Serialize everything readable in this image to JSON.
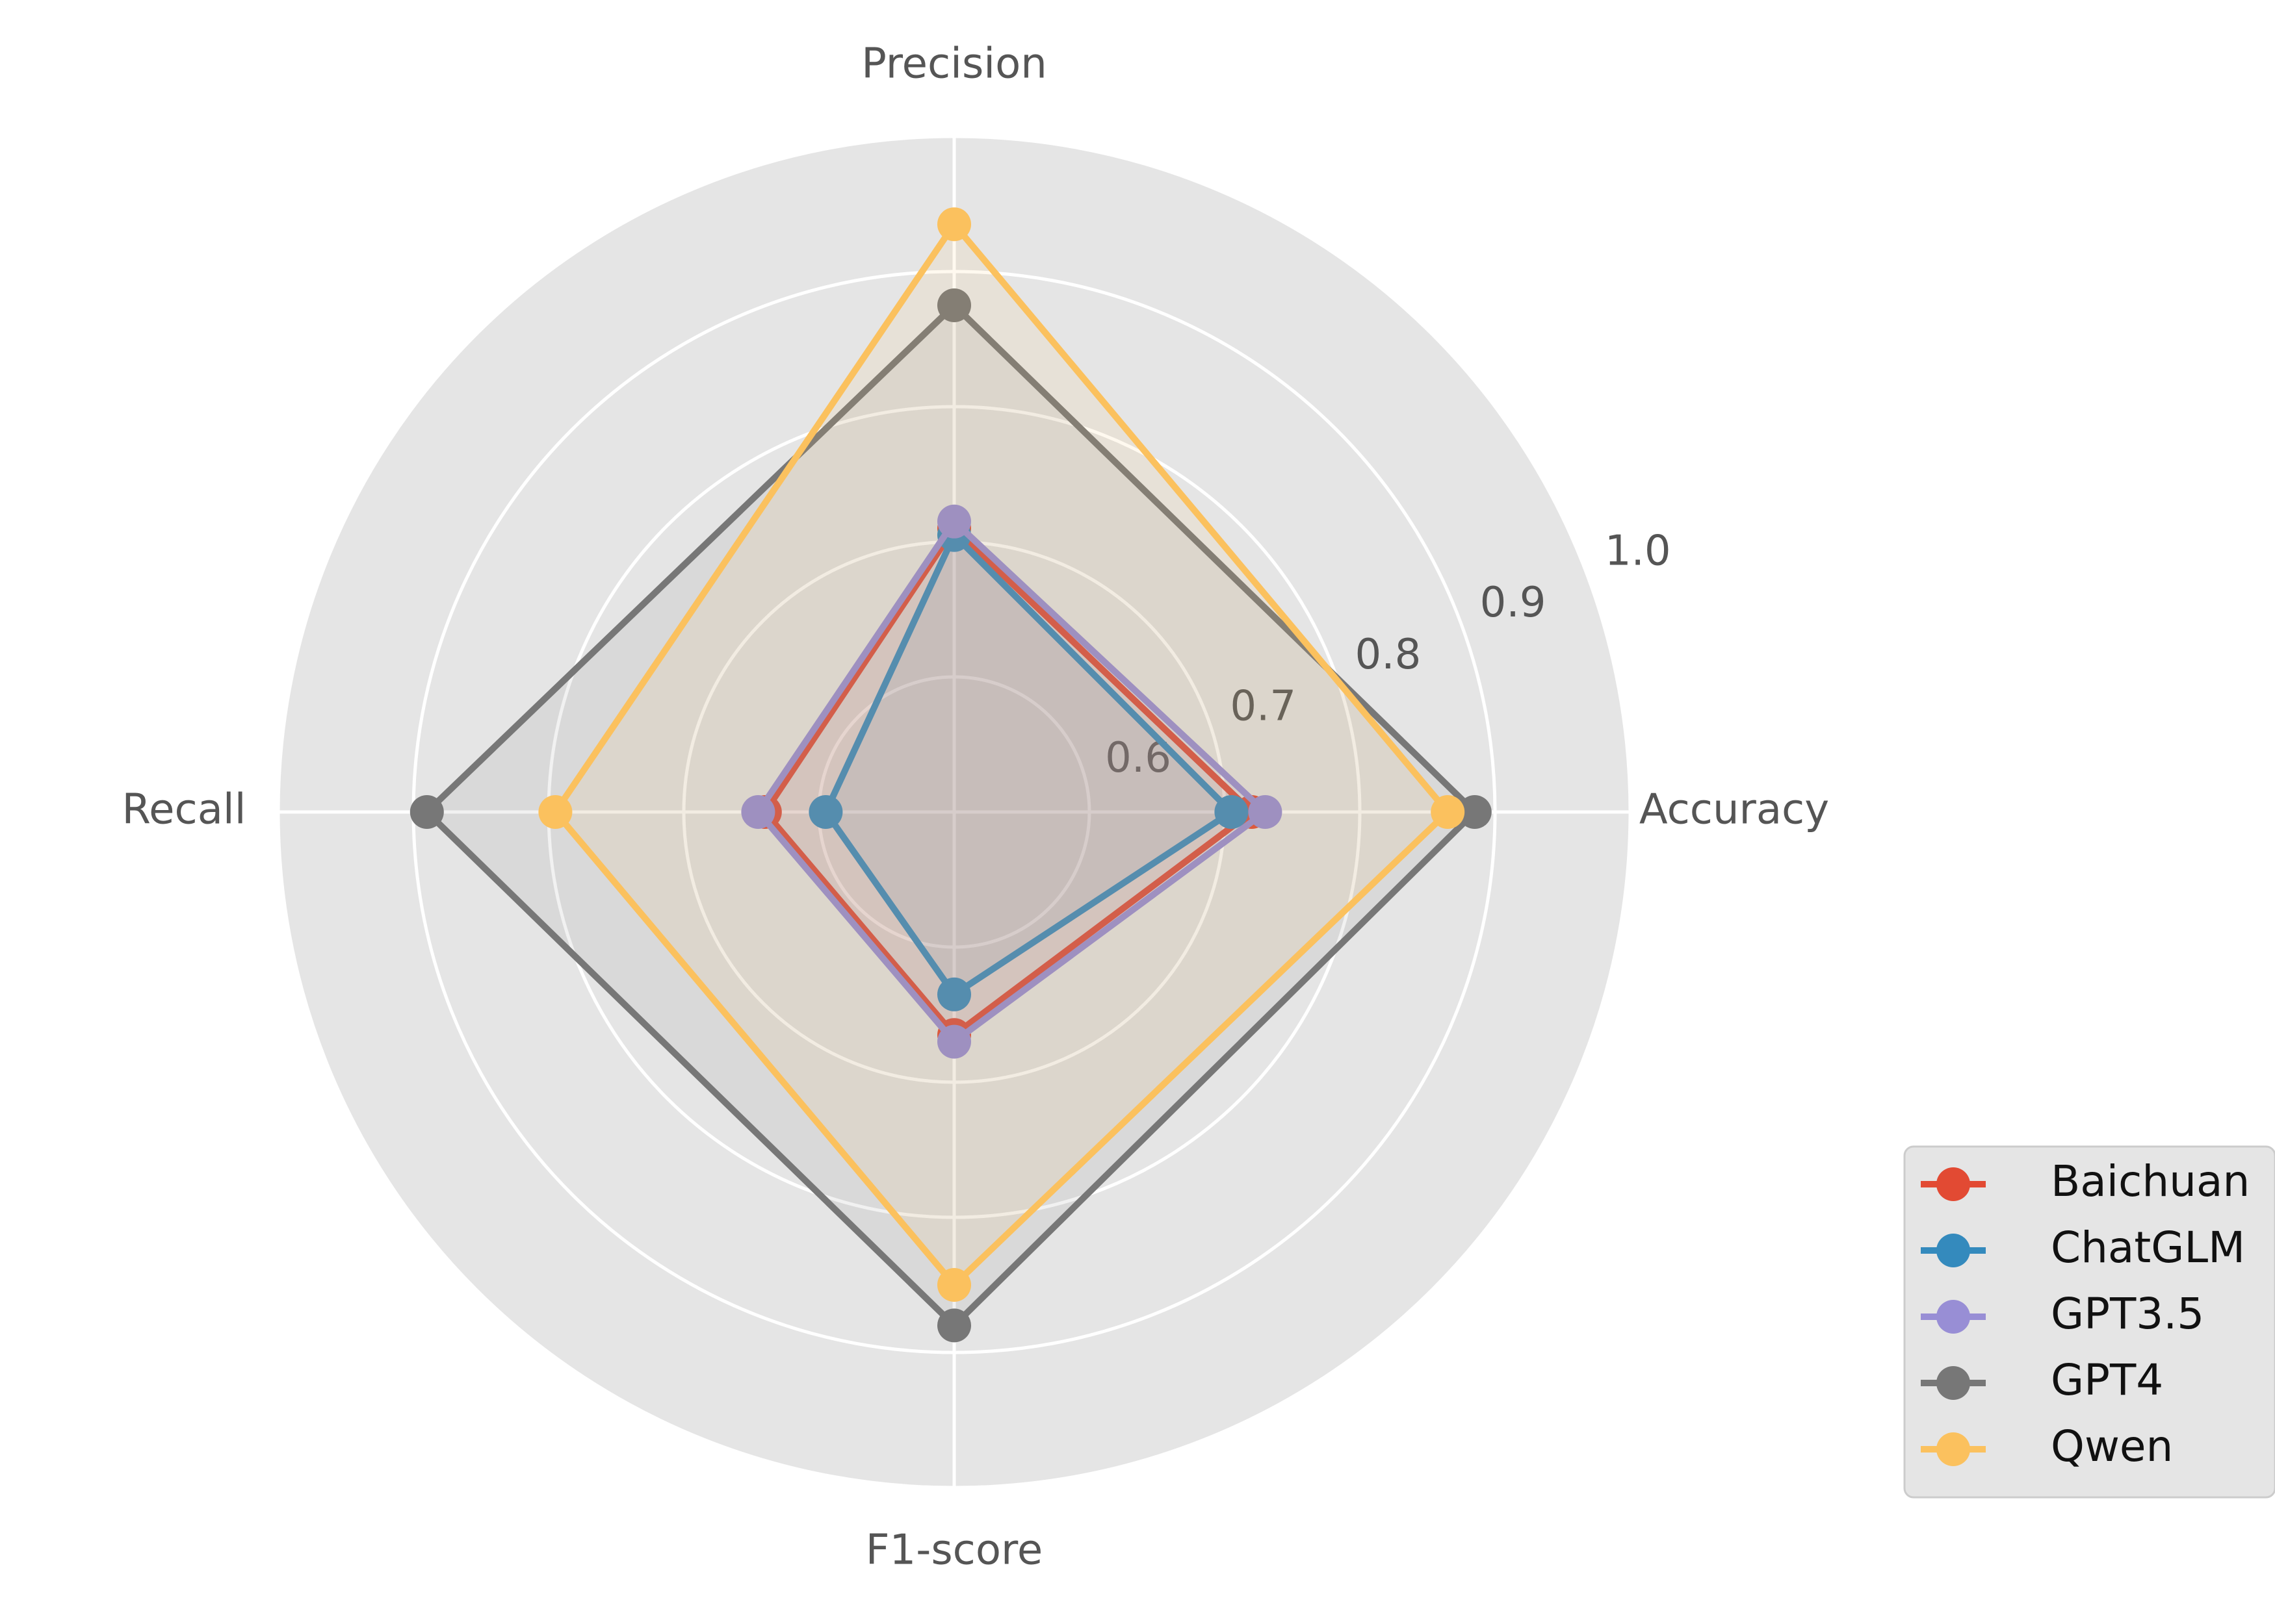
{
  "chart_data": {
    "type": "radar",
    "axes": [
      "Accuracy",
      "Precision",
      "Recall",
      "F1-score"
    ],
    "rlim": [
      0.5,
      1.0
    ],
    "r_ticks": [
      0.6,
      0.7,
      0.8,
      0.9,
      1.0
    ],
    "r_tick_labels": [
      "0.6",
      "0.7",
      "0.8",
      "0.9",
      "1.0"
    ],
    "grid": true,
    "legend_position": "bottom-right",
    "series": [
      {
        "name": "Baichuan",
        "color": "#E24A33",
        "values": [
          0.72,
          0.71,
          0.64,
          0.665
        ]
      },
      {
        "name": "ChatGLM",
        "color": "#348ABD",
        "values": [
          0.705,
          0.705,
          0.595,
          0.635
        ]
      },
      {
        "name": "GPT3.5",
        "color": "#988ED5",
        "values": [
          0.73,
          0.715,
          0.645,
          0.67
        ]
      },
      {
        "name": "GPT4",
        "color": "#777777",
        "values": [
          0.885,
          0.875,
          0.89,
          0.88
        ]
      },
      {
        "name": "Qwen",
        "color": "#FBC15E",
        "values": [
          0.865,
          0.935,
          0.795,
          0.85
        ]
      }
    ],
    "colors": {
      "plot_background": "#E5E5E5",
      "grid": "#FFFFFF",
      "text": "#555555"
    }
  }
}
